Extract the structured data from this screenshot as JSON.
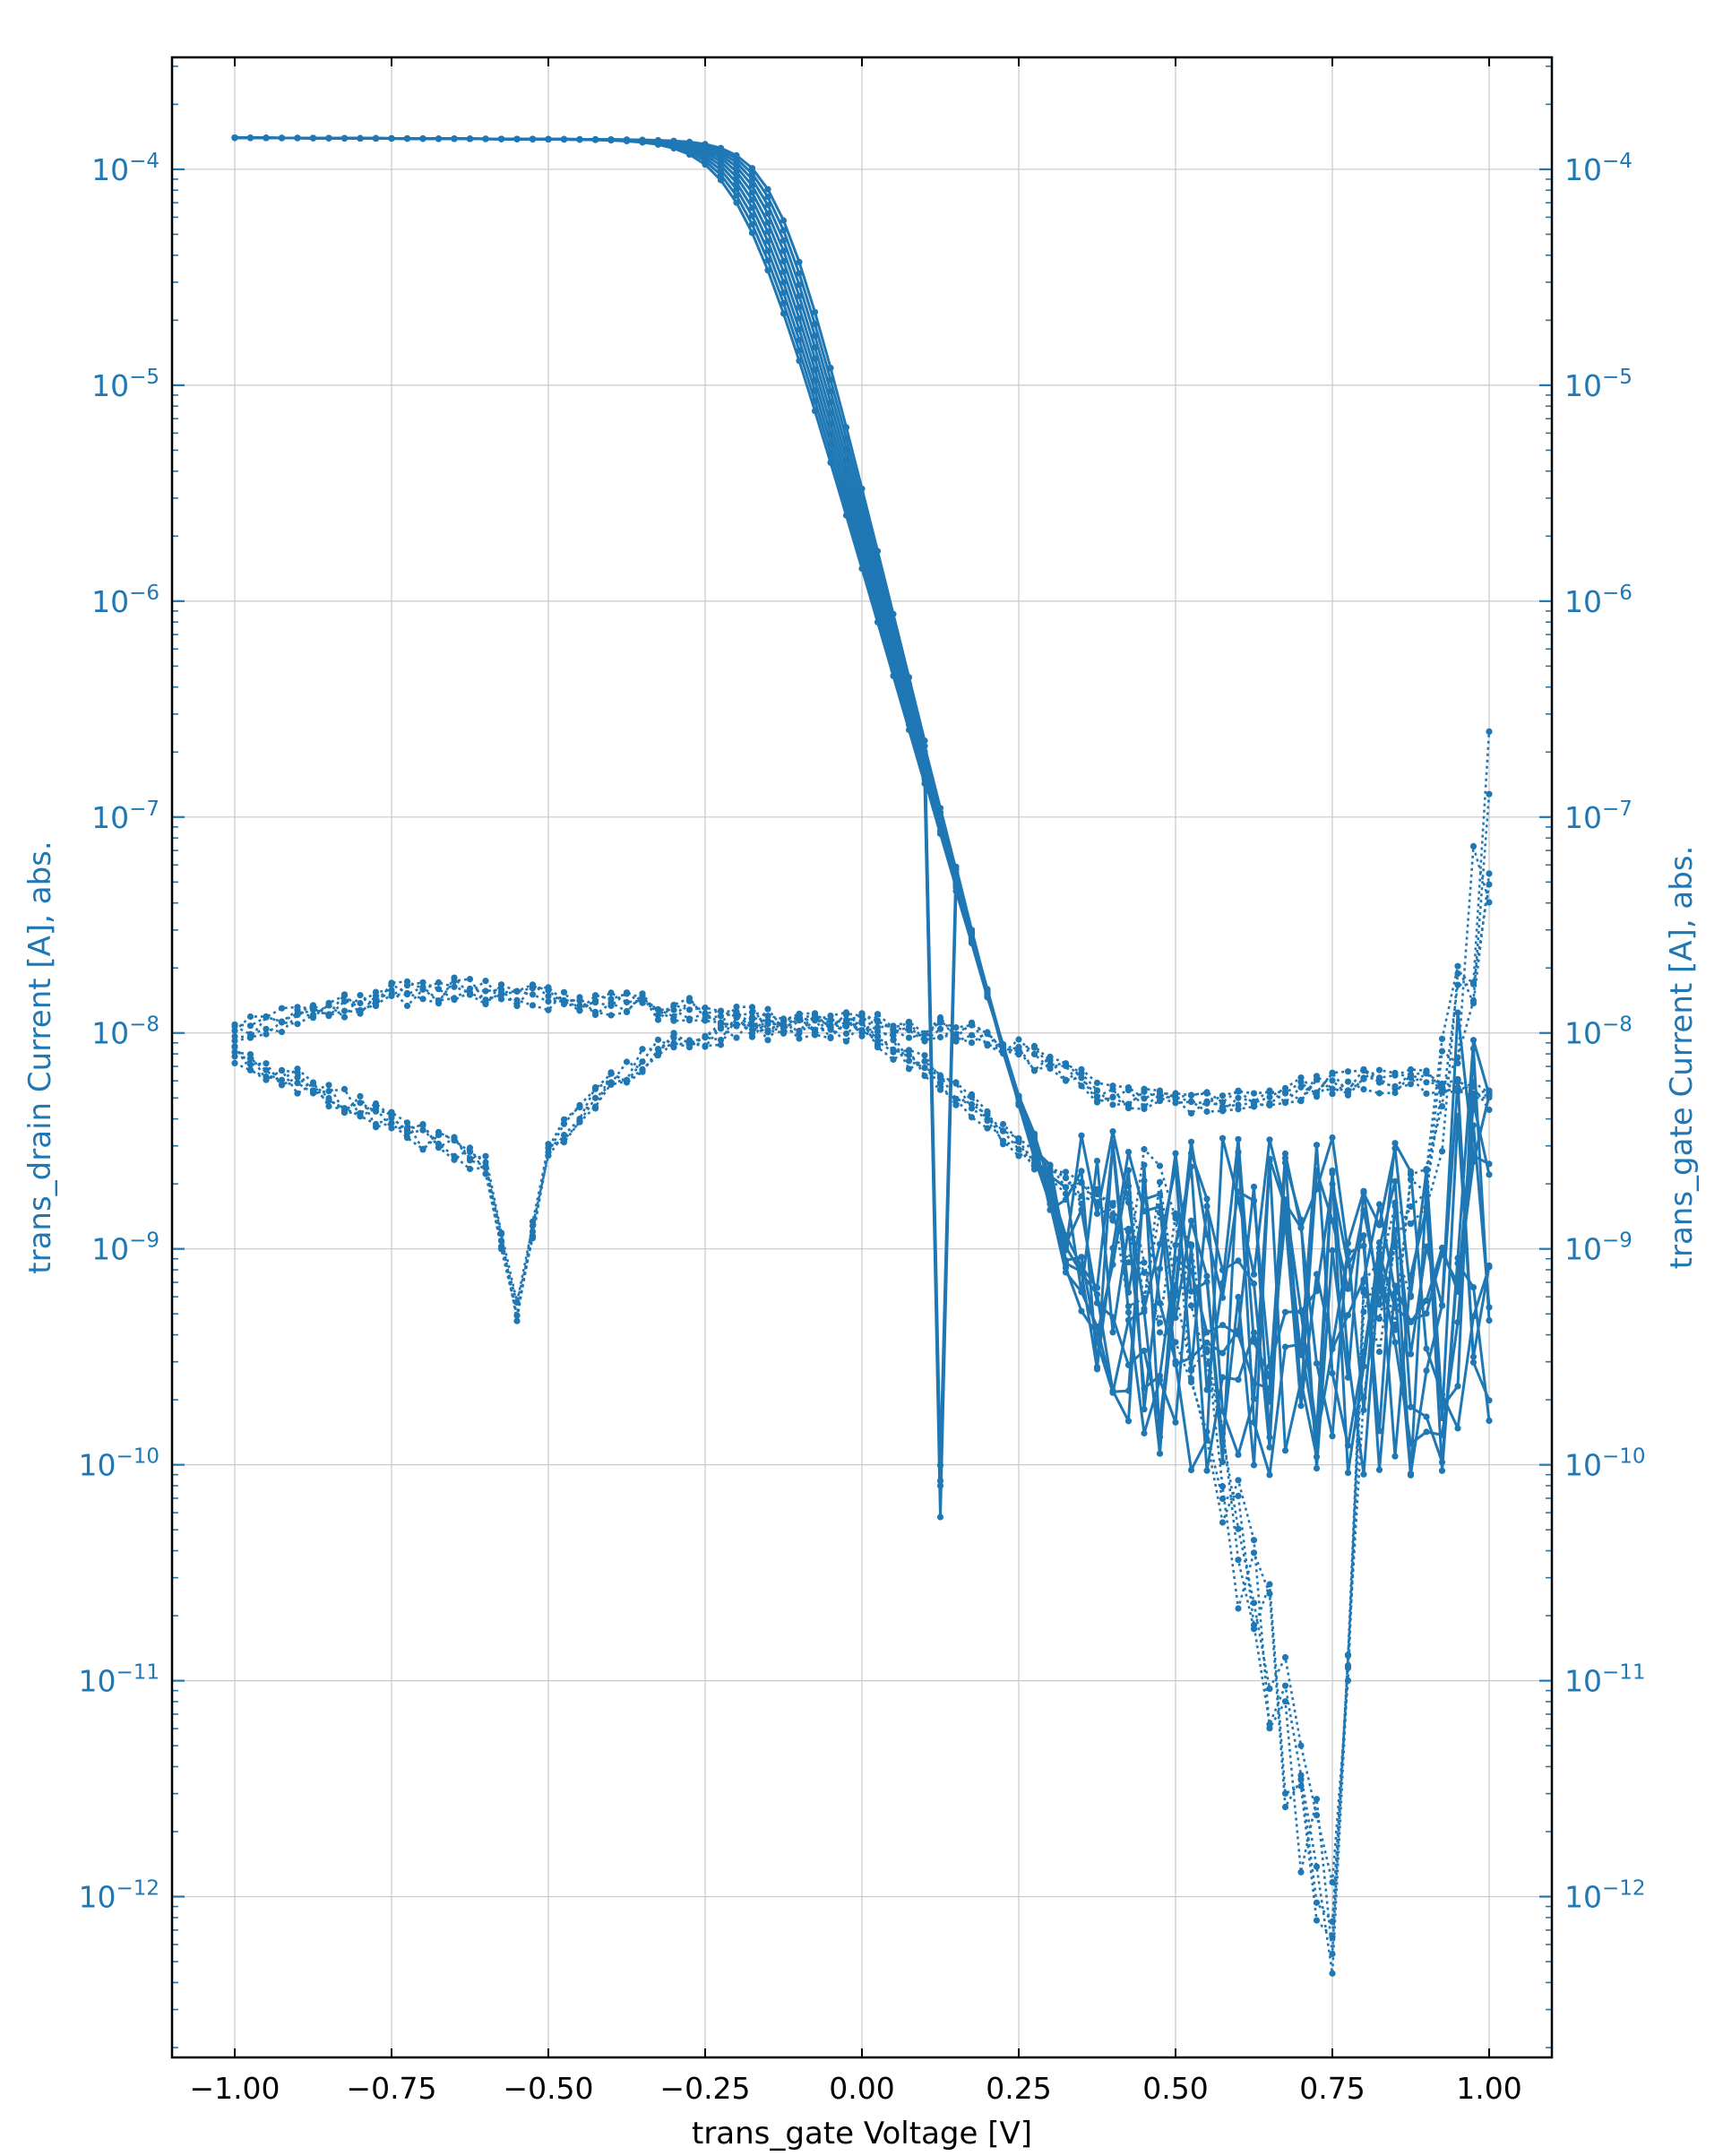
{
  "chart_data": {
    "type": "line",
    "title": "",
    "xlabel": "trans_gate Voltage [V]",
    "ylabel": "trans_drain Current [A], abs.",
    "y2label": "trans_gate Current [A], abs.",
    "xlim": [
      -1.1,
      1.1
    ],
    "ylim": [
      1.8e-13,
      0.00033
    ],
    "yscale": "log",
    "grid": true,
    "legend": "none",
    "colors": {
      "series": "#1f77b4",
      "ylabel": "#1f77b4",
      "tick_y": "#1f77b4",
      "tick_x": "#000000",
      "frame": "#000000",
      "grid": "#c8c8c8"
    },
    "xticks": [
      {
        "value": -1.0,
        "label": "−1.00"
      },
      {
        "value": -0.75,
        "label": "−0.75"
      },
      {
        "value": -0.5,
        "label": "−0.50"
      },
      {
        "value": -0.25,
        "label": "−0.25"
      },
      {
        "value": 0.0,
        "label": "0.00"
      },
      {
        "value": 0.25,
        "label": "0.25"
      },
      {
        "value": 0.5,
        "label": "0.50"
      },
      {
        "value": 0.75,
        "label": "0.75"
      },
      {
        "value": 1.0,
        "label": "1.00"
      }
    ],
    "yticks": [
      {
        "exp": -4,
        "base": "10",
        "sup": "−4"
      },
      {
        "exp": -5,
        "base": "10",
        "sup": "−5"
      },
      {
        "exp": -6,
        "base": "10",
        "sup": "−6"
      },
      {
        "exp": -7,
        "base": "10",
        "sup": "−7"
      },
      {
        "exp": -8,
        "base": "10",
        "sup": "−8"
      },
      {
        "exp": -9,
        "base": "10",
        "sup": "−9"
      },
      {
        "exp": -10,
        "base": "10",
        "sup": "−10"
      },
      {
        "exp": -11,
        "base": "10",
        "sup": "−11"
      },
      {
        "exp": -12,
        "base": "10",
        "sup": "−12"
      }
    ],
    "sweep": {
      "x_start": -1.0,
      "x_end": 1.0,
      "x_step": 0.025,
      "count": 10,
      "style": "solid",
      "marker": "dot",
      "i_on": 0.00014,
      "i_floor": 8e-10,
      "vt_range": [
        -0.32,
        -0.24
      ],
      "ss_range": [
        0.085,
        0.1
      ]
    },
    "gate_forward": {
      "x_start": -1.0,
      "x_end": 1.0,
      "x_step": 0.025,
      "count": 5,
      "style": "dotted",
      "marker": "dot",
      "anchors": [
        [
          -1.0,
          1e-08
        ],
        [
          -0.9,
          1.2e-08
        ],
        [
          -0.75,
          1.5e-08
        ],
        [
          -0.65,
          1.6e-08
        ],
        [
          -0.5,
          1.45e-08
        ],
        [
          -0.3,
          1.3e-08
        ],
        [
          -0.1,
          1.1e-08
        ],
        [
          0.0,
          1.1e-08
        ],
        [
          0.1,
          1.05e-08
        ],
        [
          0.2,
          1e-08
        ],
        [
          0.3,
          7e-09
        ],
        [
          0.4,
          5e-09
        ],
        [
          0.5,
          4.7e-09
        ],
        [
          0.6,
          5e-09
        ],
        [
          0.7,
          5.5e-09
        ],
        [
          0.8,
          6e-09
        ],
        [
          0.9,
          6e-09
        ],
        [
          1.0,
          5e-09
        ]
      ]
    },
    "gate_reverse": {
      "x_start": -1.0,
      "x_end": 1.0,
      "x_step": 0.025,
      "count": 5,
      "style": "dotted",
      "marker": "dot",
      "anchors": [
        [
          -1.0,
          8e-09
        ],
        [
          -0.9,
          6e-09
        ],
        [
          -0.8,
          4.5e-09
        ],
        [
          -0.7,
          3.3e-09
        ],
        [
          -0.6,
          2.5e-09
        ],
        [
          -0.55,
          5e-10
        ],
        [
          -0.5,
          3e-09
        ],
        [
          -0.4,
          6e-09
        ],
        [
          -0.3,
          9e-09
        ],
        [
          -0.2,
          1.05e-08
        ],
        [
          -0.1,
          1.05e-08
        ],
        [
          0.0,
          1.05e-08
        ],
        [
          0.1,
          7e-09
        ],
        [
          0.2,
          4e-09
        ],
        [
          0.3,
          2.2e-09
        ],
        [
          0.4,
          1.5e-09
        ],
        [
          0.5,
          9e-10
        ],
        [
          0.6,
          5e-11
        ],
        [
          0.7,
          3e-12
        ],
        [
          0.75,
          7e-13
        ],
        [
          0.8,
          3e-10
        ],
        [
          0.9,
          2.5e-09
        ],
        [
          0.95,
          9e-09
        ],
        [
          1.0,
          1e-07
        ]
      ]
    }
  }
}
